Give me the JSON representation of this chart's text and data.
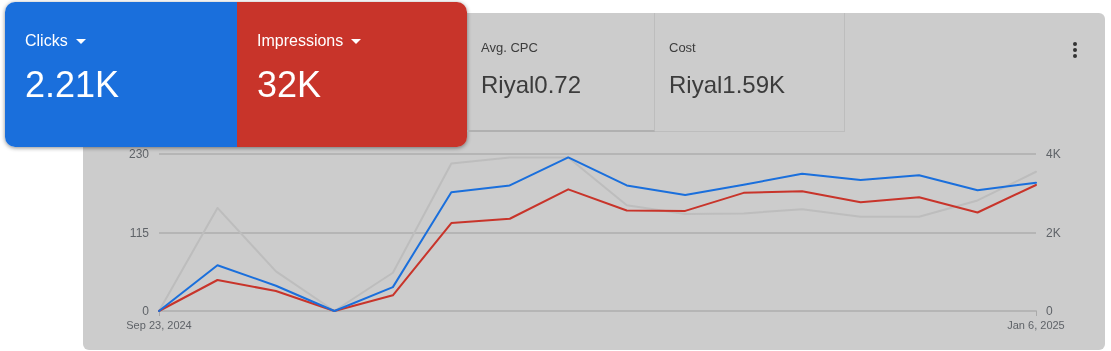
{
  "chart_data": {
    "type": "line",
    "x": [
      "2024-09-23",
      "2024-09-30",
      "2024-10-07",
      "2024-10-14",
      "2024-10-21",
      "2024-10-28",
      "2024-11-04",
      "2024-11-11",
      "2024-11-18",
      "2024-11-25",
      "2024-12-02",
      "2024-12-09",
      "2024-12-16",
      "2024-12-23",
      "2024-12-30",
      "2025-01-06"
    ],
    "xlim": [
      "2024-09-23",
      "2025-01-06"
    ],
    "xticks": [
      {
        "value": "2024-09-23",
        "label": "Sep 23, 2024"
      },
      {
        "value": "2025-01-06",
        "label": "Jan 6, 2025"
      }
    ],
    "series": [
      {
        "color": "#1a6fdc",
        "values": [
          0,
          67,
          37,
          0,
          35,
          174,
          184,
          225,
          184,
          170,
          185,
          201,
          192,
          199,
          177,
          188
        ]
      },
      {
        "color": "#c8342a",
        "axis": "y2",
        "values": [
          0,
          790,
          510,
          0,
          400,
          2240,
          2350,
          3100,
          2560,
          2550,
          3010,
          3050,
          2770,
          2900,
          2510,
          3210
        ]
      },
      {
        "color": "#bdbdbd",
        "values": [
          0,
          151,
          58,
          0,
          56,
          216,
          225,
          225,
          155,
          142,
          143,
          149,
          138,
          138,
          162,
          204
        ]
      }
    ],
    "ylim": [
      0,
      230
    ],
    "yticks": [
      0,
      115,
      230
    ],
    "y2lim": [
      0,
      4000
    ],
    "y2ticks": [
      0,
      {
        "value": 2000,
        "label": "2K"
      },
      {
        "value": 4000,
        "label": "4K"
      }
    ],
    "annotations": [
      "Clicks",
      "2.21K",
      "Impressions",
      "32K",
      "Avg. CPC",
      "Riyal0.72",
      "Cost",
      "Riyal1.59K"
    ],
    "grid": "y",
    "marker": "none",
    "line_style": "solid"
  }
}
